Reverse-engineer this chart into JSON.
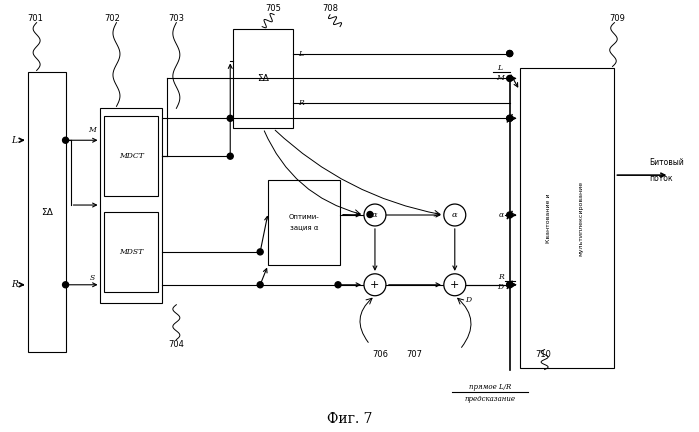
{
  "bg_color": "#ffffff",
  "fig_width": 6.99,
  "fig_height": 4.32,
  "dpi": 100,
  "fig_caption": "Фиг. 7",
  "bottom_text_line1": "прямое L/R",
  "bottom_text_line2": "предсказание"
}
